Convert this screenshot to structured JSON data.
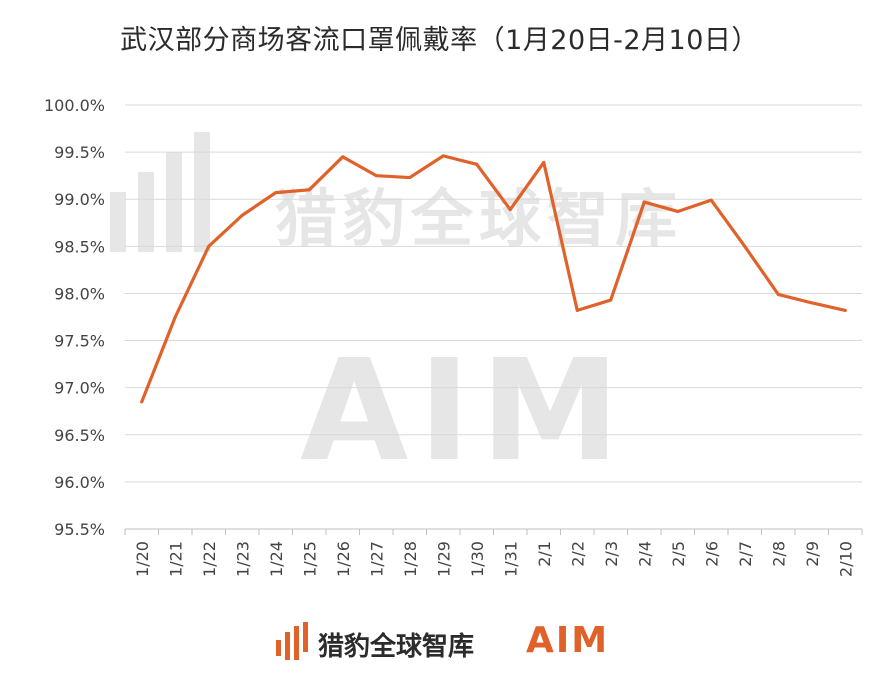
{
  "title": "武汉部分商场客流口罩佩戴率（1月20日-2月10日）",
  "watermark": {
    "text": "猎豹全球智库",
    "aim": "AIM"
  },
  "footer": {
    "brand": "猎豹全球智库",
    "aim": "AIM"
  },
  "colors": {
    "line": "#e0622a",
    "grid": "#d9d9d9",
    "brand_orange": "#e0622a"
  },
  "chart_data": {
    "type": "line",
    "title": "武汉部分商场客流口罩佩戴率（1月20日-2月10日）",
    "xlabel": "",
    "ylabel": "",
    "categories": [
      "1/20",
      "1/21",
      "1/22",
      "1/23",
      "1/24",
      "1/25",
      "1/26",
      "1/27",
      "1/28",
      "1/29",
      "1/30",
      "1/31",
      "2/1",
      "2/2",
      "2/3",
      "2/4",
      "2/5",
      "2/6",
      "2/7",
      "2/8",
      "2/9",
      "2/10"
    ],
    "series": [
      {
        "values": [
          96.85,
          97.75,
          98.5,
          98.83,
          99.07,
          99.1,
          99.45,
          99.25,
          99.23,
          99.46,
          99.37,
          98.89,
          99.39,
          97.82,
          97.93,
          98.97,
          98.87,
          98.99,
          98.5,
          97.99,
          97.9,
          97.82
        ]
      }
    ],
    "ylim": [
      95.5,
      100.0
    ],
    "yticks": [
      "95.5%",
      "96.0%",
      "96.5%",
      "97.0%",
      "97.5%",
      "98.0%",
      "98.5%",
      "99.0%",
      "99.5%",
      "100.0%"
    ],
    "grid": true,
    "legend": "none"
  }
}
